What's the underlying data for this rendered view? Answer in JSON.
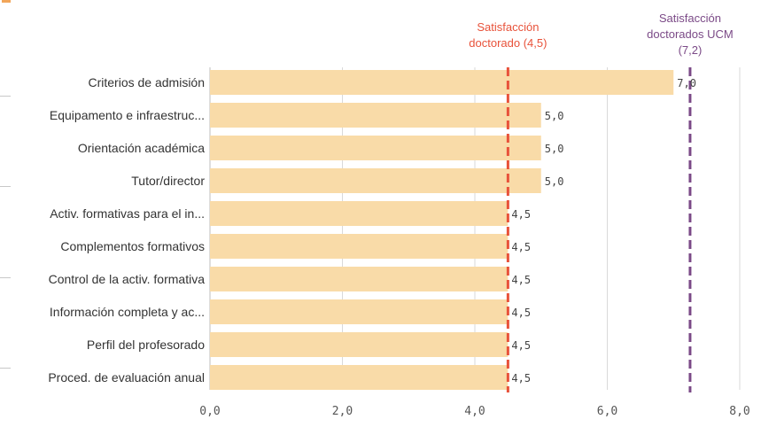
{
  "chart_data": {
    "type": "bar",
    "orientation": "horizontal",
    "categories": [
      "Criterios de admisión",
      "Equipamento e infraestruc...",
      "Orientación académica",
      "Tutor/director",
      "Activ. formativas para el in...",
      "Complementos formativos",
      "Control de la activ. formativa",
      "Información completa y ac...",
      "Perfil del profesorado",
      "Proced. de evaluación anual"
    ],
    "values": [
      7.0,
      5.0,
      5.0,
      5.0,
      4.5,
      4.5,
      4.5,
      4.5,
      4.5,
      4.5
    ],
    "value_labels": [
      "7,0",
      "5,0",
      "5,0",
      "5,0",
      "4,5",
      "4,5",
      "4,5",
      "4,5",
      "4,5",
      "4,5"
    ],
    "xlim": [
      0,
      8
    ],
    "xticks": [
      0,
      2,
      4,
      6,
      8
    ],
    "xtick_labels": [
      "0,0",
      "2,0",
      "4,0",
      "6,0",
      "8,0"
    ],
    "bar_color": "#f9dba8",
    "grid": true,
    "reference_lines": [
      {
        "value": 4.5,
        "label_lines": [
          "Satisfacción",
          "doctorado (4,5)"
        ],
        "color": "#e8523a"
      },
      {
        "value": 7.25,
        "label_lines": [
          "Satisfacción",
          "doctorados UCM",
          "(7,2)"
        ],
        "color": "#7b4a87"
      }
    ]
  }
}
